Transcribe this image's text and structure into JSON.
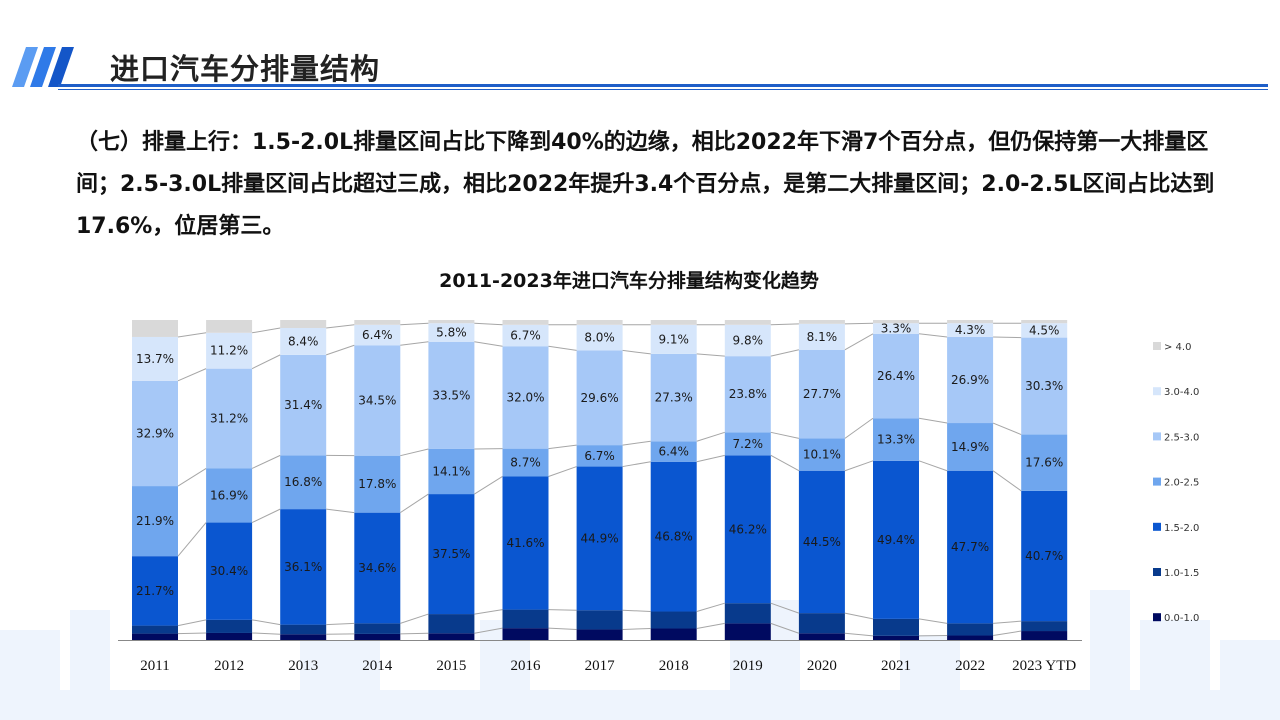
{
  "header": {
    "title": "进口汽车分排量结构"
  },
  "paragraph": "（七）排量上行：1.5-2.0L排量区间占比下降到40%的边缘，相比2022年下滑7个百分点，但仍保持第一大排量区间；2.5-3.0L排量区间占比超过三成，相比2022年提升3.4个百分点，是第二大排量区间；2.0-2.5L区间占比达到17.6%，位居第三。",
  "chart_data": {
    "type": "bar",
    "stacked": "percent",
    "title": "2011-2023年进口汽车分排量结构变化趋势",
    "categories": [
      "2011",
      "2012",
      "2013",
      "2014",
      "2015",
      "2016",
      "2017",
      "2018",
      "2019",
      "2020",
      "2021",
      "2022",
      "2023 YTD"
    ],
    "ylim": [
      0,
      100
    ],
    "legend_position": "right",
    "grid": false,
    "series": [
      {
        "name": "0.0-1.0",
        "color": "#000a60",
        "labeled": false,
        "values": [
          2.0,
          2.2,
          1.8,
          1.9,
          2.1,
          3.7,
          3.3,
          3.6,
          5.2,
          2.1,
          1.3,
          1.4,
          2.8
        ]
      },
      {
        "name": "1.0-1.5",
        "color": "#083a8c",
        "labeled": false,
        "values": [
          2.5,
          4.1,
          3.0,
          3.3,
          6.0,
          5.8,
          6.0,
          5.3,
          6.3,
          6.3,
          5.3,
          3.8,
          3.1
        ]
      },
      {
        "name": "1.5-2.0",
        "color": "#0a56d0",
        "labeled": true,
        "values": [
          21.7,
          30.4,
          36.1,
          34.6,
          37.5,
          41.6,
          44.9,
          46.8,
          46.2,
          44.5,
          49.4,
          47.7,
          40.7
        ]
      },
      {
        "name": "2.0-2.5",
        "color": "#6fa6ee",
        "labeled": true,
        "values": [
          21.9,
          16.9,
          16.8,
          17.8,
          14.1,
          8.7,
          6.7,
          6.4,
          7.2,
          10.1,
          13.3,
          14.9,
          17.6
        ]
      },
      {
        "name": "2.5-3.0",
        "color": "#a6c8f7",
        "labeled": true,
        "values": [
          32.9,
          31.2,
          31.4,
          34.5,
          33.5,
          32.0,
          29.6,
          27.3,
          23.8,
          27.7,
          26.4,
          26.9,
          30.3
        ]
      },
      {
        "name": "3.0-4.0",
        "color": "#d6e6fb",
        "labeled": true,
        "values": [
          13.7,
          11.2,
          8.4,
          6.4,
          5.8,
          6.7,
          8.0,
          9.1,
          9.8,
          8.1,
          3.3,
          4.3,
          4.5
        ]
      },
      {
        "name": "> 4.0",
        "color": "#d9d9d9",
        "labeled": false,
        "values": [
          5.3,
          4.0,
          2.5,
          1.5,
          1.0,
          1.5,
          1.5,
          1.5,
          1.5,
          1.2,
          1.0,
          1.0,
          1.0
        ]
      }
    ]
  }
}
